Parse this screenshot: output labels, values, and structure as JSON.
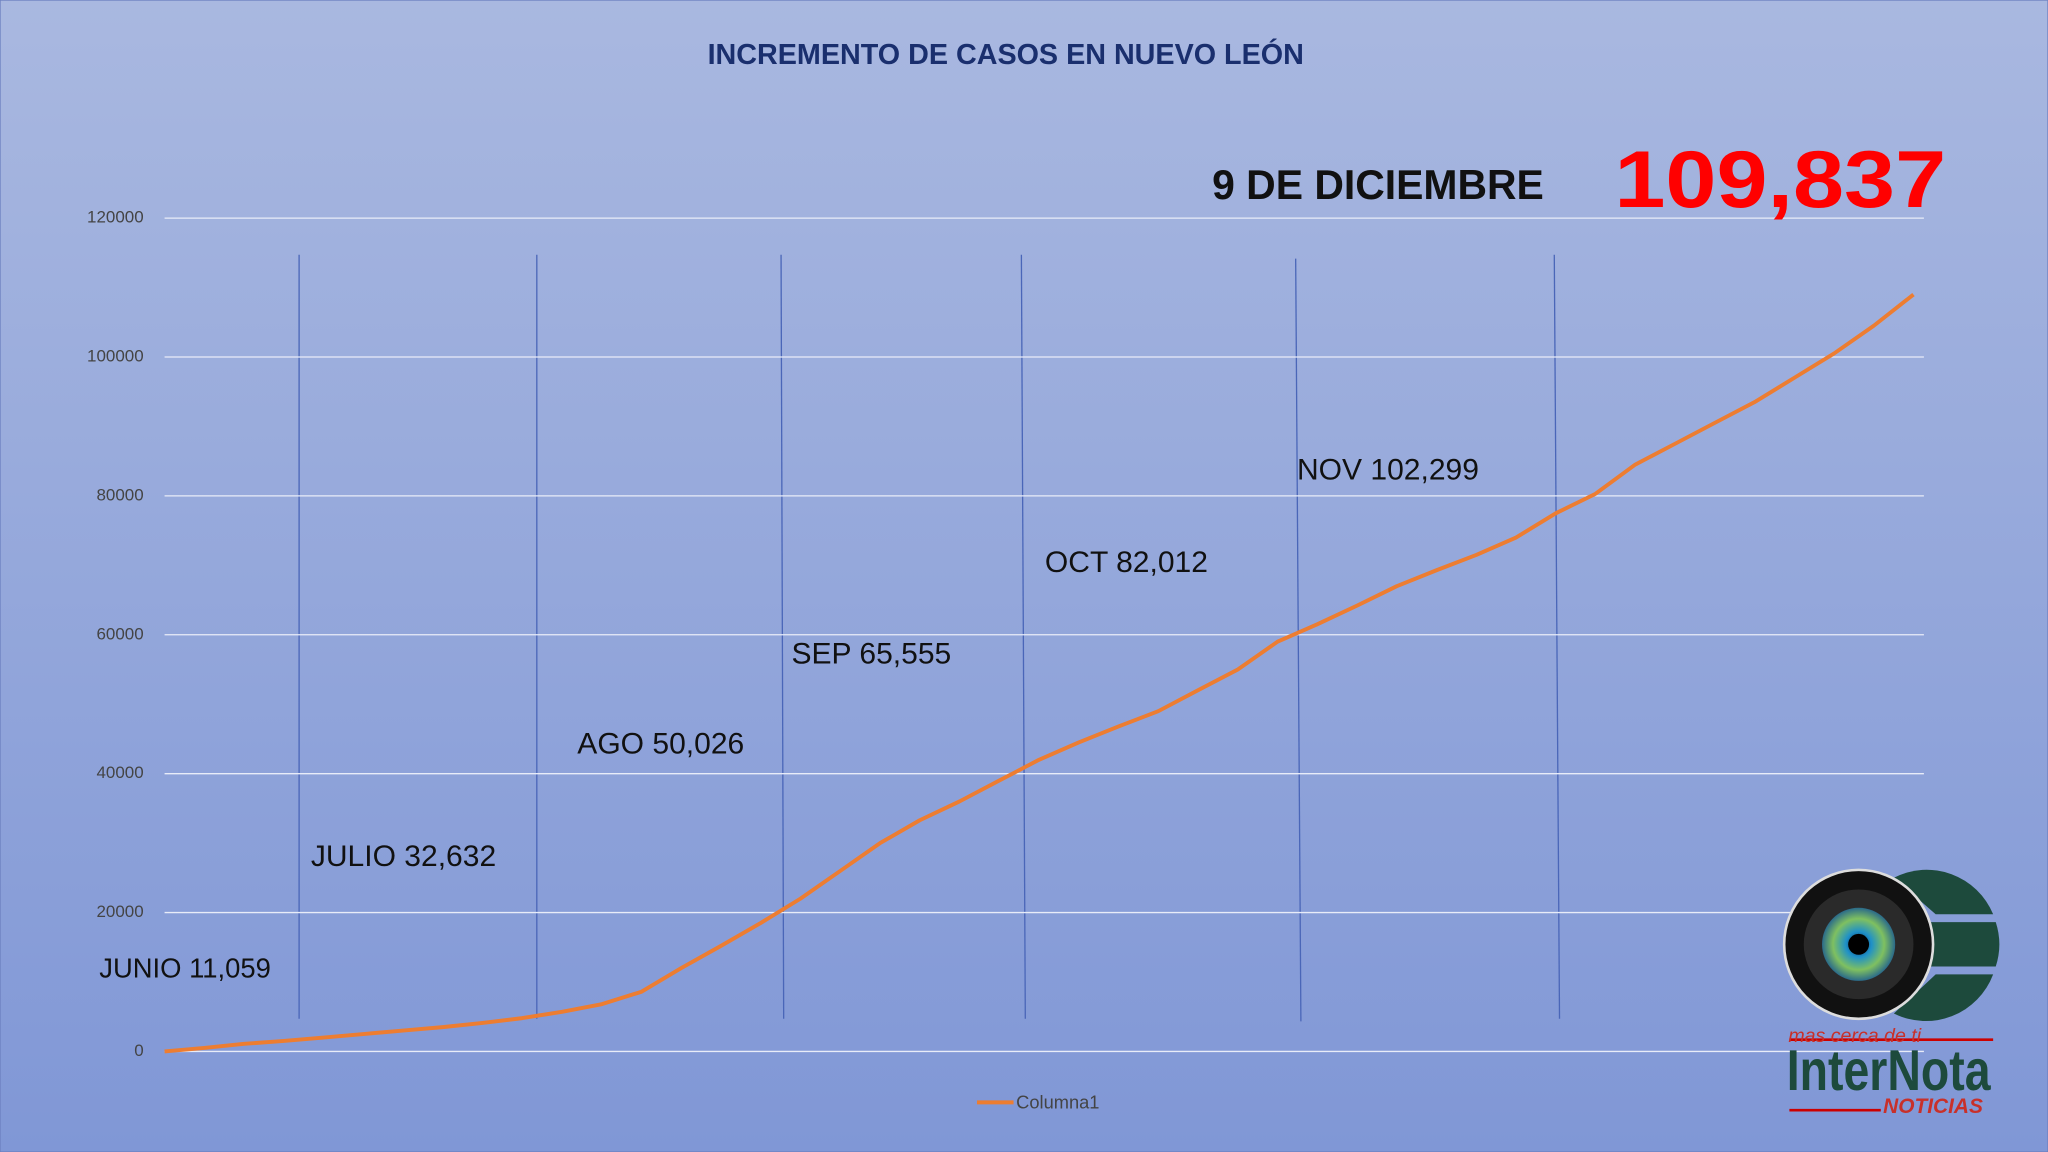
{
  "chart_data": {
    "type": "line",
    "title": "INCREMENTO DE CASOS EN NUEVO LEÓN",
    "series": [
      {
        "name": "Columna1",
        "color": "#ed7d31",
        "values": [
          0,
          500,
          1100,
          1500,
          2000,
          2500,
          3000,
          3500,
          4100,
          4800,
          5700,
          6800,
          8600,
          12000,
          15200,
          18500,
          22000,
          26000,
          30000,
          33300,
          36000,
          39000,
          42000,
          44500,
          46800,
          49000,
          52000,
          55000,
          59000,
          61500,
          64200,
          67000,
          69300,
          71500,
          74000,
          77500,
          80300,
          84500,
          87500,
          90500,
          93500,
          97000,
          100500,
          104500,
          109000
        ]
      }
    ],
    "ylim": [
      0,
      120000
    ],
    "yticks": [
      0,
      20000,
      40000,
      60000,
      80000,
      100000,
      120000
    ],
    "grid": true,
    "legend": "bottom",
    "annotations": [
      "JUNIO 11,059",
      "JULIO 32,632",
      "AGO 50,026",
      "SEP 65,555",
      "OCT 82,012",
      "NOV 102,299",
      "9 DE DICIEMBRE",
      "109,837"
    ]
  },
  "logo": {
    "tagline": "mas cerca de ti",
    "name": "InterNota",
    "sub": "NOTICIAS"
  }
}
